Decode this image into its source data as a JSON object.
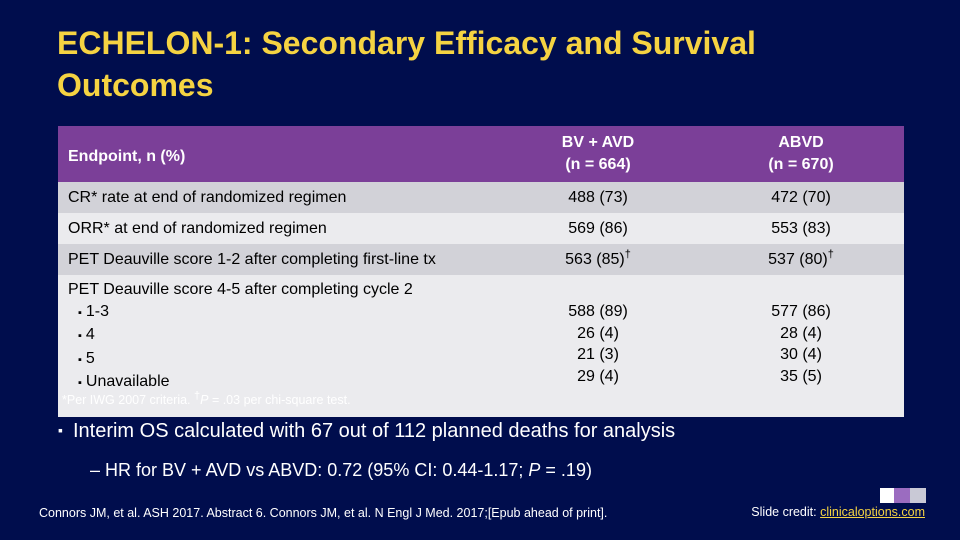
{
  "title": "ECHELON-1: Secondary Efficacy and Survival Outcomes",
  "table": {
    "headers": {
      "endpoint": "Endpoint, n (%)",
      "arm1_line1": "BV + AVD",
      "arm1_line2": "(n = 664)",
      "arm2_line1": "ABVD",
      "arm2_line2": "(n = 670)"
    },
    "rows": [
      {
        "label": "CR* rate at end of randomized regimen",
        "bv": "488 (73)",
        "abvd": "472 (70)"
      },
      {
        "label": "ORR* at end of randomized regimen",
        "bv": "569 (86)",
        "abvd": "553 (83)"
      },
      {
        "label": "PET Deauville score 1-2 after completing first-line tx",
        "bv": "563 (85)",
        "abvd": "537 (80)",
        "mark": "†"
      }
    ],
    "pet_row": {
      "label": "PET Deauville score 4-5 after completing cycle 2",
      "subs": [
        {
          "label": "1-3",
          "bv": "588 (89)",
          "abvd": "577 (86)"
        },
        {
          "label": "4",
          "bv": "26 (4)",
          "abvd": "28 (4)"
        },
        {
          "label": "5",
          "bv": "21 (3)",
          "abvd": "30 (4)"
        },
        {
          "label": "Unavailable",
          "bv": "29 (4)",
          "abvd": "35 (5)"
        }
      ]
    }
  },
  "footnote": {
    "part1": "*Per IWG 2007 criteria. ",
    "dagger": "†",
    "p": "P",
    "part2": " = .03 per chi-square test."
  },
  "bullets": {
    "main_marker": "▪",
    "main": "Interim OS calculated with 67 out of 112 planned deaths for analysis",
    "sub_marker": "–",
    "sub_part1": "HR for BV + AVD vs ABVD: 0.72 (95% CI: 0.44-1.17; ",
    "sub_p": "P",
    "sub_part2": " = .19)"
  },
  "citation": "Connors JM, et al. ASH 2017. Abstract 6. Connors JM, et al. N Engl J Med. 2017;[Epub ahead of print].",
  "credit": {
    "label": "Slide credit: ",
    "link": "clinicaloptions.com"
  },
  "logo": {
    "name": "clinical-care-options-logo"
  }
}
